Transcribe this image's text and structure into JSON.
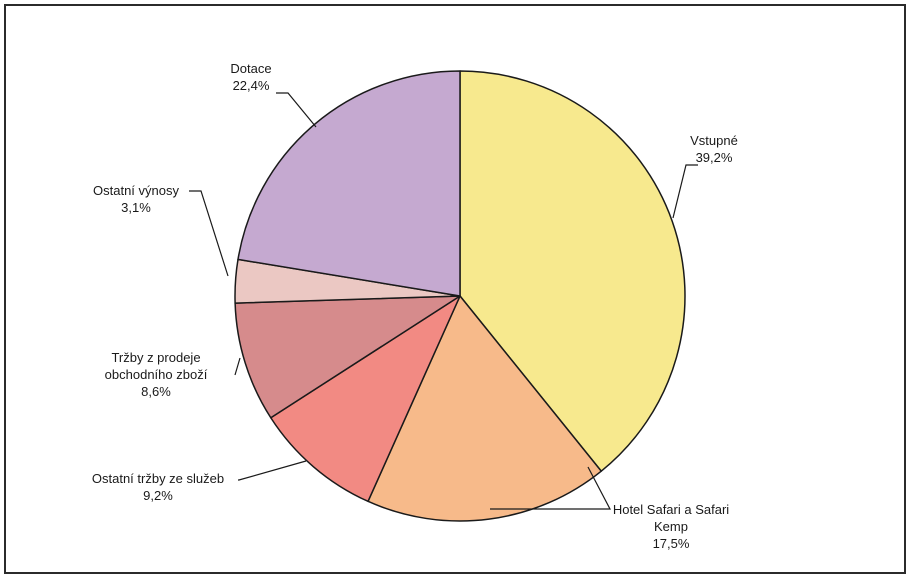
{
  "chart_data": {
    "type": "pie",
    "title": "",
    "slices": [
      {
        "label_lines": [
          "Vstupné"
        ],
        "value": 39.2,
        "value_label": "39,2%",
        "color": "#F7E98E"
      },
      {
        "label_lines": [
          "Hotel Safari a Safari",
          "Kemp"
        ],
        "value": 17.5,
        "value_label": "17,5%",
        "color": "#F7BA8A"
      },
      {
        "label_lines": [
          "Ostatní tržby ze služeb"
        ],
        "value": 9.2,
        "value_label": "9,2%",
        "color": "#F28A83"
      },
      {
        "label_lines": [
          "Tržby z prodeje",
          "obchodního zboží"
        ],
        "value": 8.6,
        "value_label": "8,6%",
        "color": "#D68B8C"
      },
      {
        "label_lines": [
          "Ostatní výnosy"
        ],
        "value": 3.1,
        "value_label": "3,1%",
        "color": "#EBC8C3"
      },
      {
        "label_lines": [
          "Dotace"
        ],
        "value": 22.4,
        "value_label": "22,4%",
        "color": "#C5A9D0"
      }
    ],
    "start_angle": "12 o'clock",
    "direction": "clockwise",
    "legend": "none",
    "label_style": "outside with leader lines"
  }
}
